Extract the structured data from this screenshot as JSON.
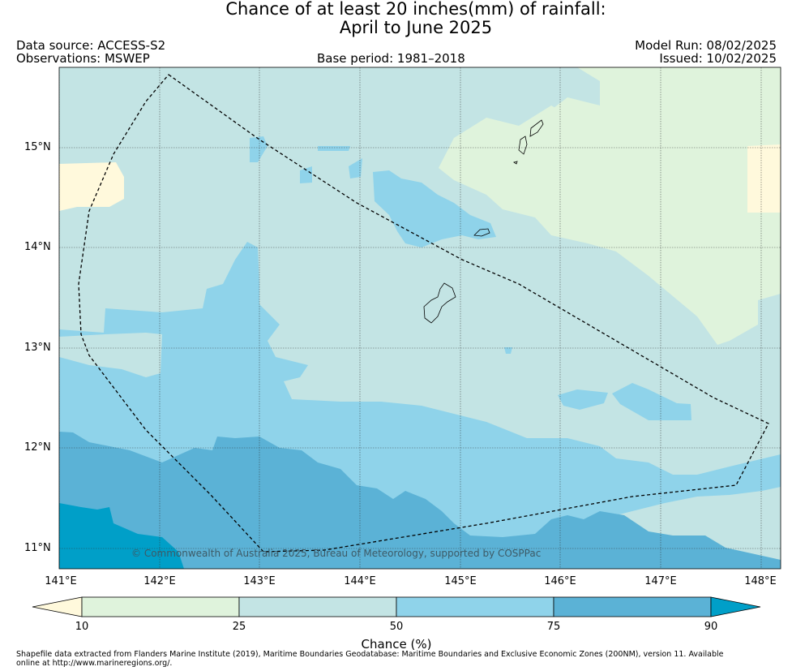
{
  "title": {
    "line1": "Chance of at least 20 inches(mm) of rainfall:",
    "line2": "April to June 2025"
  },
  "header": {
    "data_source": "Data source: ACCESS-S2",
    "observations": "Observations: MSWEP",
    "base_period": "Base period: 1981–2018",
    "model_run": "Model Run: 08/02/2025",
    "issued": "Issued: 10/02/2025"
  },
  "map": {
    "lat_labels": [
      "15°N",
      "14°N",
      "13°N",
      "12°N",
      "11°N"
    ],
    "lon_labels": [
      "141°E",
      "142°E",
      "143°E",
      "144°E",
      "145°E",
      "146°E",
      "147°E",
      "148°E"
    ],
    "copyright": "© Commonwealth of Australia 2025, Bureau of Meteorology, supported by COSPPac"
  },
  "legend": {
    "title": "Chance (%)",
    "tick_labels": [
      "10",
      "25",
      "50",
      "75",
      "90"
    ],
    "bins": [
      {
        "range": "<10",
        "color": "#fff9dc"
      },
      {
        "range": "10-25",
        "color": "#dff3dc"
      },
      {
        "range": "25-50",
        "color": "#c3e4e4"
      },
      {
        "range": "50-75",
        "color": "#8fd3ea"
      },
      {
        "range": "75-90",
        "color": "#5bb2d6"
      },
      {
        "range": ">90",
        "color": "#009fc8"
      }
    ]
  },
  "footnote": "Shapefile data extracted from Flanders Marine Institute (2019), Maritime Boundaries Geodatabase: Maritime Boundaries and Exclusive Economic Zones (200NM), version 11. Available online at http://www.marineregions.org/."
}
